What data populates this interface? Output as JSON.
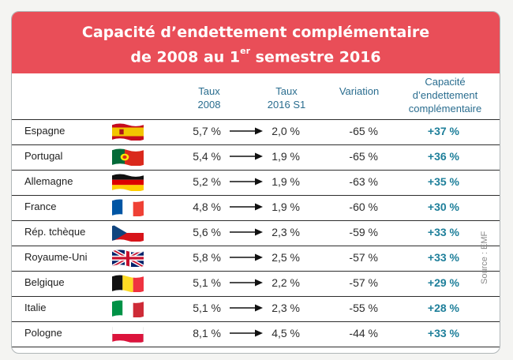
{
  "title": {
    "line1": "Capacité d’endettement complémentaire",
    "line2_prefix": "de 2008 au 1",
    "line2_sup": "er",
    "line2_suffix": " semestre 2016"
  },
  "columns": {
    "taux2008": [
      "Taux",
      "2008"
    ],
    "taux2016": [
      "Taux",
      "2016 S1"
    ],
    "variation": "Variation",
    "capacite": [
      "Capacité",
      "d’endettement",
      "complémentaire"
    ]
  },
  "rows": [
    {
      "country": "Espagne",
      "flag": "spain-flag",
      "taux2008": "5,7 %",
      "taux2016": "2,0 %",
      "variation": "-65 %",
      "capacite": "+37 %"
    },
    {
      "country": "Portugal",
      "flag": "portugal-flag",
      "taux2008": "5,4 %",
      "taux2016": "1,9 %",
      "variation": "-65 %",
      "capacite": "+36 %"
    },
    {
      "country": "Allemagne",
      "flag": "germany-flag",
      "taux2008": "5,2 %",
      "taux2016": "1,9 %",
      "variation": "-63 %",
      "capacite": "+35 %"
    },
    {
      "country": "France",
      "flag": "france-flag",
      "taux2008": "4,8 %",
      "taux2016": "1,9 %",
      "variation": "-60 %",
      "capacite": "+30 %"
    },
    {
      "country": "Rép. tchèque",
      "flag": "czech-flag",
      "taux2008": "5,6 %",
      "taux2016": "2,3 %",
      "variation": "-59 %",
      "capacite": "+33 %"
    },
    {
      "country": "Royaume-Uni",
      "flag": "uk-flag",
      "taux2008": "5,8 %",
      "taux2016": "2,5 %",
      "variation": "-57 %",
      "capacite": "+33 %"
    },
    {
      "country": "Belgique",
      "flag": "belgium-flag",
      "taux2008": "5,1 %",
      "taux2016": "2,2 %",
      "variation": "-57 %",
      "capacite": "+29 %"
    },
    {
      "country": "Italie",
      "flag": "italy-flag",
      "taux2008": "5,1 %",
      "taux2016": "2,3 %",
      "variation": "-55 %",
      "capacite": "+28 %"
    },
    {
      "country": "Pologne",
      "flag": "poland-flag",
      "taux2008": "8,1 %",
      "taux2016": "4,5 %",
      "variation": "-44 %",
      "capacite": "+33 %"
    }
  ],
  "source": "Source : EMF",
  "colors": {
    "header": "#e94e58",
    "heading_text": "#2a6d8f",
    "capacity_text": "#1e7f9a"
  }
}
